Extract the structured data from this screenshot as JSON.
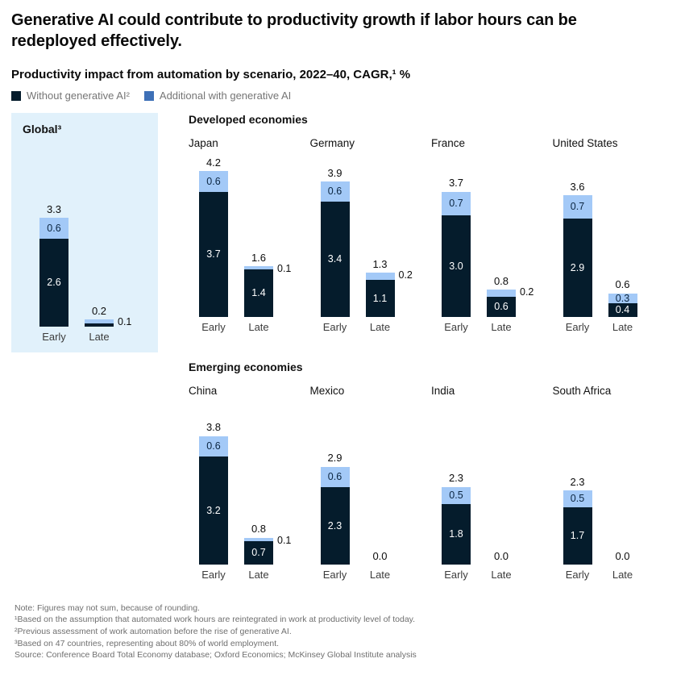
{
  "page": {
    "title": "Generative AI could contribute to productivity growth if labor hours can be redeployed effectively.",
    "subtitle": "Productivity impact from automation by scenario, 2022–40, CAGR,¹ %"
  },
  "legend": [
    {
      "label": "Without generative AI²",
      "color": "#051C2C"
    },
    {
      "label": "Additional with generative AI",
      "color": "#3E70B7"
    }
  ],
  "colors": {
    "without_genai": "#051C2C",
    "additional_genai_bar": "#A3C9F7",
    "global_panel_bg": "#E1F1FB",
    "text_dark": "#0A0A0A",
    "text_muted": "#757575",
    "footnote_text": "#6F6F6F"
  },
  "chart_data": {
    "type": "bar",
    "stacked": true,
    "title": "Productivity impact from automation by scenario, 2022–40, CAGR, %",
    "categories": [
      "Early",
      "Late"
    ],
    "series_names": [
      "Without generative AI",
      "Additional with generative AI"
    ],
    "value_unit": "% CAGR 2022–40",
    "ylim": [
      0,
      4.3
    ],
    "axes_visible": false,
    "legend_position": "top-left",
    "groups": [
      {
        "name": "Global",
        "panels": [
          {
            "country": "Global³",
            "highlight": true,
            "bars": [
              {
                "category": "Early",
                "total_label": "3.3",
                "without": 2.6,
                "without_label": "2.6",
                "additional": 0.6,
                "additional_label": "0.6",
                "additional_label_pos": "inside"
              },
              {
                "category": "Late",
                "total_label": "0.2",
                "without": 0.1,
                "without_label": null,
                "additional": 0.1,
                "additional_label": "0.1",
                "additional_label_pos": "right"
              }
            ]
          }
        ]
      },
      {
        "name": "Developed economies",
        "panels": [
          {
            "country": "Japan",
            "highlight": false,
            "bars": [
              {
                "category": "Early",
                "total_label": "4.2",
                "without": 3.7,
                "without_label": "3.7",
                "additional": 0.6,
                "additional_label": "0.6",
                "additional_label_pos": "inside"
              },
              {
                "category": "Late",
                "total_label": "1.6",
                "without": 1.4,
                "without_label": "1.4",
                "additional": 0.1,
                "additional_label": "0.1",
                "additional_label_pos": "right"
              }
            ]
          },
          {
            "country": "Germany",
            "highlight": false,
            "bars": [
              {
                "category": "Early",
                "total_label": "3.9",
                "without": 3.4,
                "without_label": "3.4",
                "additional": 0.6,
                "additional_label": "0.6",
                "additional_label_pos": "inside"
              },
              {
                "category": "Late",
                "total_label": "1.3",
                "without": 1.1,
                "without_label": "1.1",
                "additional": 0.2,
                "additional_label": "0.2",
                "additional_label_pos": "right"
              }
            ]
          },
          {
            "country": "France",
            "highlight": false,
            "bars": [
              {
                "category": "Early",
                "total_label": "3.7",
                "without": 3.0,
                "without_label": "3.0",
                "additional": 0.7,
                "additional_label": "0.7",
                "additional_label_pos": "inside"
              },
              {
                "category": "Late",
                "total_label": "0.8",
                "without": 0.6,
                "without_label": "0.6",
                "additional": 0.2,
                "additional_label": "0.2",
                "additional_label_pos": "right"
              }
            ]
          },
          {
            "country": "United States",
            "highlight": false,
            "bars": [
              {
                "category": "Early",
                "total_label": "3.6",
                "without": 2.9,
                "without_label": "2.9",
                "additional": 0.7,
                "additional_label": "0.7",
                "additional_label_pos": "inside"
              },
              {
                "category": "Late",
                "total_label": "0.6",
                "without": 0.4,
                "without_label": "0.4",
                "additional": 0.3,
                "additional_label": "0.3",
                "additional_label_pos": "inside"
              }
            ]
          }
        ]
      },
      {
        "name": "Emerging economies",
        "panels": [
          {
            "country": "China",
            "highlight": false,
            "bars": [
              {
                "category": "Early",
                "total_label": "3.8",
                "without": 3.2,
                "without_label": "3.2",
                "additional": 0.6,
                "additional_label": "0.6",
                "additional_label_pos": "inside"
              },
              {
                "category": "Late",
                "total_label": "0.8",
                "without": 0.7,
                "without_label": "0.7",
                "additional": 0.1,
                "additional_label": "0.1",
                "additional_label_pos": "right"
              }
            ]
          },
          {
            "country": "Mexico",
            "highlight": false,
            "bars": [
              {
                "category": "Early",
                "total_label": "2.9",
                "without": 2.3,
                "without_label": "2.3",
                "additional": 0.6,
                "additional_label": "0.6",
                "additional_label_pos": "inside"
              },
              {
                "category": "Late",
                "total_label": "0.0",
                "without": 0,
                "without_label": null,
                "additional": 0,
                "additional_label": null,
                "additional_label_pos": "none"
              }
            ]
          },
          {
            "country": "India",
            "highlight": false,
            "bars": [
              {
                "category": "Early",
                "total_label": "2.3",
                "without": 1.8,
                "without_label": "1.8",
                "additional": 0.5,
                "additional_label": "0.5",
                "additional_label_pos": "inside"
              },
              {
                "category": "Late",
                "total_label": "0.0",
                "without": 0,
                "without_label": null,
                "additional": 0,
                "additional_label": null,
                "additional_label_pos": "none"
              }
            ]
          },
          {
            "country": "South Africa",
            "highlight": false,
            "bars": [
              {
                "category": "Early",
                "total_label": "2.3",
                "without": 1.7,
                "without_label": "1.7",
                "additional": 0.5,
                "additional_label": "0.5",
                "additional_label_pos": "inside"
              },
              {
                "category": "Late",
                "total_label": "0.0",
                "without": 0,
                "without_label": null,
                "additional": 0,
                "additional_label": null,
                "additional_label_pos": "none"
              }
            ]
          }
        ]
      }
    ]
  },
  "footnotes": [
    "Note: Figures may not sum, because of rounding.",
    "¹Based on the assumption that automated work hours are reintegrated in work at productivity level of today.",
    "²Previous assessment of work automation before the rise of generative AI.",
    "³Based on 47 countries, representing about 80% of world employment.",
    "Source: Conference Board Total Economy database; Oxford Economics; McKinsey Global Institute analysis"
  ]
}
